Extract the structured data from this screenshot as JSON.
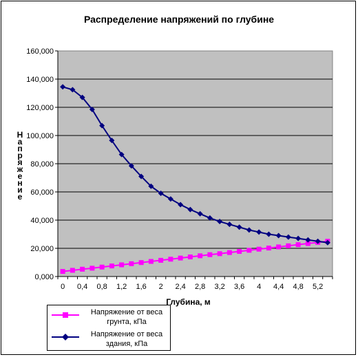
{
  "chart_data": {
    "type": "line",
    "title": "Распределение напряжений по глубине",
    "xlabel": "Глубина, м",
    "ylabel": "Напряжение",
    "ylim": [
      0,
      160000
    ],
    "yticks": [
      "0,000",
      "20,000",
      "40,000",
      "60,000",
      "80,000",
      "100,000",
      "120,000",
      "140,000",
      "160,000"
    ],
    "xticks": [
      "0",
      "0,4",
      "0,8",
      "1,2",
      "1,6",
      "2",
      "2,4",
      "2,8",
      "3,2",
      "3,6",
      "4",
      "4,4",
      "4,8",
      "5,2"
    ],
    "x": [
      0,
      0.2,
      0.4,
      0.6,
      0.8,
      1.0,
      1.2,
      1.4,
      1.6,
      1.8,
      2.0,
      2.2,
      2.4,
      2.6,
      2.8,
      3.0,
      3.2,
      3.4,
      3.6,
      3.8,
      4.0,
      4.2,
      4.4,
      4.6,
      4.8,
      5.0,
      5.2,
      5.4
    ],
    "grid": true,
    "legend_position": "bottom-left",
    "background": "#c0c0c0",
    "series": [
      {
        "name": "Напряжение от веса грунта, кПа",
        "color": "#ff00ff",
        "marker": "square",
        "values": [
          3600,
          4400,
          5200,
          5900,
          6700,
          7500,
          8300,
          9100,
          9900,
          10700,
          11500,
          12300,
          13100,
          13900,
          14700,
          15500,
          16200,
          17000,
          17800,
          18600,
          19400,
          20200,
          21000,
          21800,
          22600,
          23400,
          24200,
          25000
        ]
      },
      {
        "name": "Напряжение от веса здания, кПа",
        "color": "#000080",
        "marker": "diamond",
        "values": [
          134500,
          132500,
          127000,
          118500,
          107000,
          96500,
          86500,
          78500,
          71000,
          64000,
          59000,
          55000,
          51000,
          47500,
          44500,
          41500,
          39000,
          37000,
          35000,
          33000,
          31500,
          30000,
          29000,
          28000,
          27000,
          26000,
          25000,
          24000
        ]
      }
    ]
  }
}
